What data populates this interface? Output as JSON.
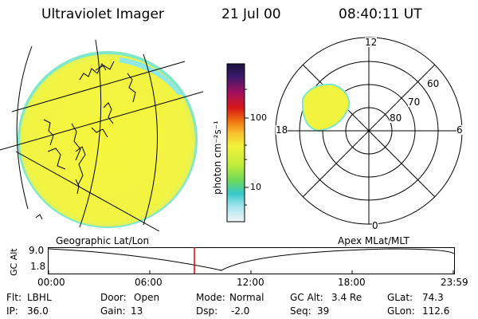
{
  "header": {
    "instrument": "Ultraviolet Imager",
    "date": "21 Jul 00",
    "time": "08:40:11 UT"
  },
  "colorbar": {
    "label": "photon cm⁻²s⁻¹",
    "ticks": [
      "100",
      "10"
    ]
  },
  "polar_plot": {
    "mlt_labels": {
      "top": "12",
      "left": "18",
      "right": "6",
      "bottom": "0"
    },
    "lat_labels": [
      "60",
      "70",
      "80"
    ]
  },
  "timeline": {
    "left_title": "Geographic Lat/Lon",
    "right_title": "Apex MLat/MLT",
    "y_axis_label": "GC Alt",
    "y_ticks": [
      "9.0",
      "1.8"
    ],
    "x_ticks": [
      "00:00",
      "06:00",
      "12:00",
      "18:00",
      "23:59"
    ]
  },
  "status": {
    "row1": [
      {
        "key": "Flt:",
        "value": "LBHL"
      },
      {
        "key": "Door:",
        "value": "Open"
      },
      {
        "key": "Mode:",
        "value": "Normal"
      },
      {
        "key": "GC Alt:",
        "value": "3.4 Re"
      },
      {
        "key": "GLat:",
        "value": "74.3"
      }
    ],
    "row2": [
      {
        "key": "IP:",
        "value": "36.0"
      },
      {
        "key": "Gain:",
        "value": "13"
      },
      {
        "key": "Dsp:",
        "value": "-2.0"
      },
      {
        "key": "Seq:",
        "value": "39"
      },
      {
        "key": "GLon:",
        "value": "112.6"
      }
    ]
  },
  "colors": {
    "disk_fill": "#f4f53a",
    "disk_edge": "#c8f07a",
    "edge_cyan": "#7fe8c8",
    "cursor": "#e00000"
  }
}
